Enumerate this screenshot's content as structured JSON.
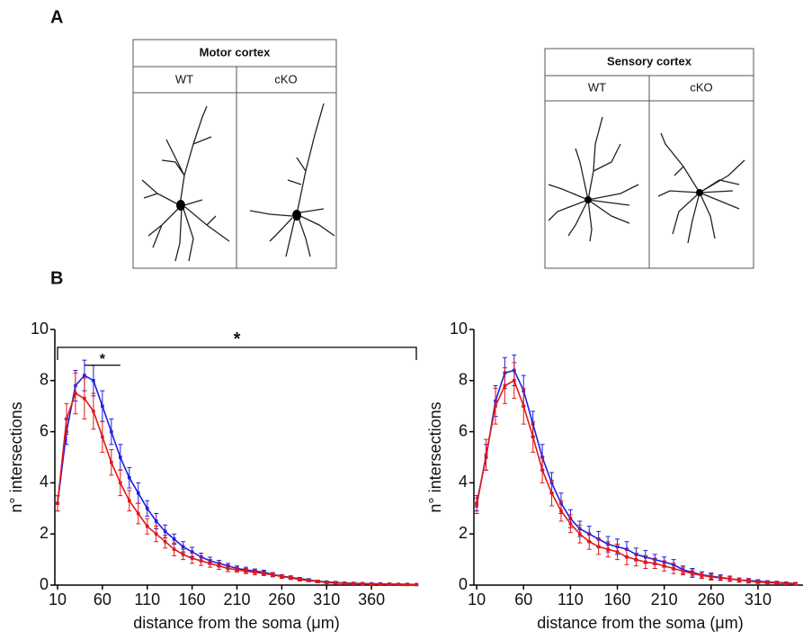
{
  "panel_labels": [
    "A",
    "B"
  ],
  "tables": [
    {
      "title": "Motor cortex",
      "columns": [
        "WT",
        "cKO"
      ]
    },
    {
      "title": "Sensory cortex",
      "columns": [
        "WT",
        "cKO"
      ]
    }
  ],
  "chart_data": [
    {
      "type": "line",
      "xlabel": "distance from the soma (μm)",
      "ylabel": "n° intersections",
      "x": [
        10,
        20,
        30,
        40,
        50,
        60,
        70,
        80,
        90,
        100,
        110,
        120,
        130,
        140,
        150,
        160,
        170,
        180,
        190,
        200,
        210,
        220,
        230,
        240,
        250,
        260,
        270,
        280,
        290,
        300,
        310,
        320,
        330,
        340,
        350,
        360,
        370,
        380,
        390,
        400,
        410
      ],
      "series": [
        {
          "color": "#1f1fe0",
          "values": [
            3.2,
            6.0,
            7.8,
            8.2,
            8.0,
            7.0,
            6.0,
            5.0,
            4.2,
            3.6,
            3.0,
            2.5,
            2.1,
            1.8,
            1.5,
            1.3,
            1.1,
            0.95,
            0.85,
            0.75,
            0.65,
            0.6,
            0.55,
            0.5,
            0.42,
            0.35,
            0.3,
            0.25,
            0.2,
            0.15,
            0.12,
            0.1,
            0.08,
            0.07,
            0.06,
            0.05,
            0.05,
            0.04,
            0.03,
            0.03,
            0.02
          ],
          "errors": [
            0.3,
            0.5,
            0.6,
            0.6,
            0.6,
            0.6,
            0.5,
            0.5,
            0.4,
            0.4,
            0.3,
            0.3,
            0.25,
            0.2,
            0.2,
            0.18,
            0.15,
            0.14,
            0.12,
            0.1,
            0.1,
            0.1,
            0.08,
            0.08,
            0.07,
            0.06,
            0.06,
            0.05,
            0.05,
            0.04,
            0.04,
            0.04,
            0.03,
            0.03,
            0.03,
            0.03,
            0.02,
            0.02,
            0.02,
            0.02,
            0.02
          ]
        },
        {
          "color": "#e01818",
          "values": [
            3.2,
            6.5,
            7.5,
            7.3,
            6.8,
            5.8,
            4.8,
            4.0,
            3.3,
            2.8,
            2.3,
            2.0,
            1.7,
            1.4,
            1.2,
            1.05,
            0.95,
            0.85,
            0.75,
            0.65,
            0.6,
            0.55,
            0.5,
            0.45,
            0.4,
            0.33,
            0.28,
            0.22,
            0.18,
            0.14,
            0.1,
            0.08,
            0.07,
            0.06,
            0.05,
            0.04,
            0.04,
            0.03,
            0.03,
            0.02,
            0.02
          ],
          "errors": [
            0.3,
            0.6,
            0.8,
            0.8,
            0.7,
            0.6,
            0.5,
            0.5,
            0.4,
            0.4,
            0.3,
            0.3,
            0.25,
            0.25,
            0.2,
            0.2,
            0.18,
            0.15,
            0.14,
            0.12,
            0.1,
            0.1,
            0.1,
            0.08,
            0.08,
            0.07,
            0.06,
            0.06,
            0.05,
            0.05,
            0.04,
            0.04,
            0.03,
            0.03,
            0.03,
            0.03,
            0.02,
            0.02,
            0.02,
            0.02,
            0.02
          ]
        }
      ],
      "xlim": [
        7,
        410
      ],
      "ylim": [
        0,
        10
      ],
      "xticks": [
        10,
        60,
        110,
        160,
        210,
        260,
        310,
        360
      ],
      "yticks": [
        0,
        2,
        4,
        6,
        8,
        10
      ],
      "annotations": [
        {
          "text": "*",
          "x": [
            10,
            410
          ],
          "y": 9.3
        },
        {
          "text": "*",
          "x": [
            40,
            80
          ],
          "y": 8.6
        }
      ]
    },
    {
      "type": "line",
      "xlabel": "distance from the soma (μm)",
      "ylabel": "n° intersections",
      "x": [
        10,
        20,
        30,
        40,
        50,
        60,
        70,
        80,
        90,
        100,
        110,
        120,
        130,
        140,
        150,
        160,
        170,
        180,
        190,
        200,
        210,
        220,
        230,
        240,
        250,
        260,
        270,
        280,
        290,
        300,
        310,
        320,
        330,
        340,
        350
      ],
      "series": [
        {
          "color": "#1f1fe0",
          "values": [
            3.2,
            5.0,
            7.2,
            8.3,
            8.4,
            7.6,
            6.3,
            5.0,
            4.0,
            3.2,
            2.6,
            2.2,
            2.0,
            1.8,
            1.6,
            1.5,
            1.4,
            1.2,
            1.1,
            1.0,
            0.9,
            0.8,
            0.6,
            0.5,
            0.4,
            0.35,
            0.3,
            0.25,
            0.2,
            0.18,
            0.15,
            0.12,
            0.1,
            0.08,
            0.06
          ],
          "errors": [
            0.3,
            0.5,
            0.6,
            0.6,
            0.6,
            0.6,
            0.5,
            0.5,
            0.4,
            0.4,
            0.35,
            0.3,
            0.3,
            0.3,
            0.3,
            0.3,
            0.3,
            0.25,
            0.25,
            0.2,
            0.2,
            0.2,
            0.15,
            0.15,
            0.12,
            0.12,
            0.1,
            0.1,
            0.08,
            0.08,
            0.06,
            0.05,
            0.05,
            0.04,
            0.04
          ]
        },
        {
          "color": "#e01818",
          "values": [
            3.1,
            5.1,
            7.0,
            7.8,
            8.0,
            7.0,
            5.8,
            4.5,
            3.6,
            2.9,
            2.4,
            2.0,
            1.7,
            1.5,
            1.4,
            1.3,
            1.1,
            1.0,
            0.9,
            0.85,
            0.75,
            0.65,
            0.55,
            0.45,
            0.38,
            0.32,
            0.28,
            0.24,
            0.2,
            0.16,
            0.12,
            0.1,
            0.08,
            0.06,
            0.05
          ],
          "errors": [
            0.3,
            0.6,
            0.7,
            0.7,
            0.7,
            0.7,
            0.6,
            0.5,
            0.5,
            0.4,
            0.35,
            0.35,
            0.3,
            0.3,
            0.3,
            0.3,
            0.3,
            0.25,
            0.25,
            0.2,
            0.2,
            0.2,
            0.15,
            0.15,
            0.12,
            0.12,
            0.1,
            0.1,
            0.08,
            0.08,
            0.06,
            0.05,
            0.05,
            0.04,
            0.04
          ]
        }
      ],
      "xlim": [
        7,
        358
      ],
      "ylim": [
        0,
        10
      ],
      "xticks": [
        10,
        60,
        110,
        160,
        210,
        260,
        310
      ],
      "yticks": [
        0,
        2,
        4,
        6,
        8,
        10
      ],
      "annotations": []
    }
  ]
}
